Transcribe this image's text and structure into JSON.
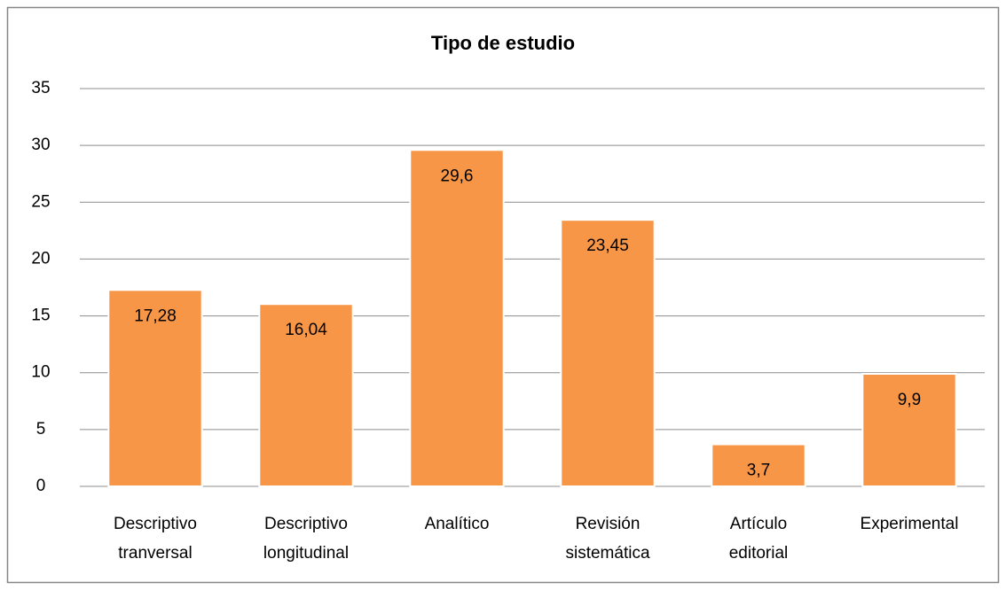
{
  "chart_data": {
    "type": "bar",
    "title": "Tipo de estudio",
    "categories": [
      "Descriptivo tranversal",
      "Descriptivo longitudinal",
      "Analítico",
      "Revisión sistemática",
      "Artículo editorial",
      "Experimental"
    ],
    "values": [
      17.28,
      16.04,
      29.6,
      23.45,
      3.7,
      9.9
    ],
    "value_labels": [
      "17,28",
      "16,04",
      "29,6",
      "23,45",
      "3,7",
      "9,9"
    ],
    "color": "#f79646",
    "ylim": [
      0,
      35
    ],
    "yticks": [
      0,
      5,
      10,
      15,
      20,
      25,
      30,
      35
    ],
    "grid": true
  }
}
